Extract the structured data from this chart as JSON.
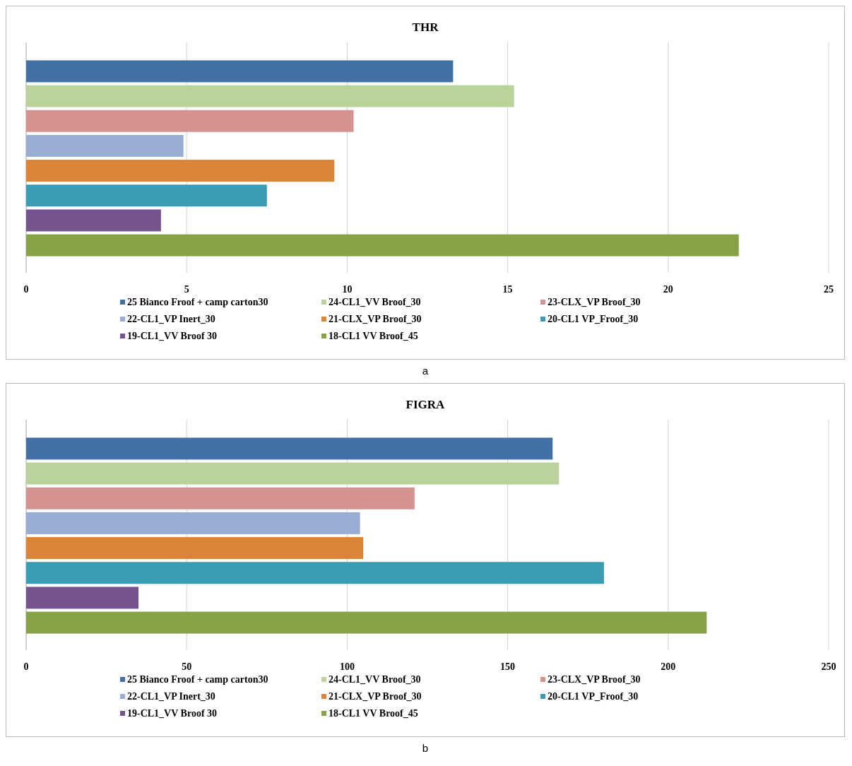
{
  "chart_data": [
    {
      "type": "bar",
      "orientation": "horizontal",
      "title": "THR",
      "categories": [
        null
      ],
      "xlim": [
        0,
        25
      ],
      "xticks": [
        0,
        5,
        10,
        15,
        20,
        25
      ],
      "grid": "x",
      "legend": "bottom",
      "tick_labels": "x",
      "annotations": [
        "a"
      ],
      "series": [
        {
          "name": "25 Bianco Froof + camp carton30",
          "color": "#4470a8",
          "values": [
            13.3
          ]
        },
        {
          "name": "24-CL1_VV Broof_30",
          "color": "#b9d39a",
          "values": [
            15.2
          ]
        },
        {
          "name": "23-CLX_VP Broof_30",
          "color": "#d59291",
          "values": [
            10.2
          ]
        },
        {
          "name": "22-CL1_VP Inert_30",
          "color": "#98acd4",
          "values": [
            4.9
          ]
        },
        {
          "name": "21-CLX_VP Broof_30",
          "color": "#da8437",
          "values": [
            9.6
          ]
        },
        {
          "name": "20-CL1 VP_Froof_30",
          "color": "#3a9bb1",
          "values": [
            7.5
          ]
        },
        {
          "name": "19-CL1_VV Broof 30",
          "color": "#74538f",
          "values": [
            4.2
          ]
        },
        {
          "name": "18-CL1 VV Broof_45",
          "color": "#86a346",
          "values": [
            22.2
          ]
        }
      ]
    },
    {
      "type": "bar",
      "orientation": "horizontal",
      "title": "FIGRA",
      "categories": [
        null
      ],
      "xlim": [
        0,
        250
      ],
      "xticks": [
        0,
        50,
        100,
        150,
        200,
        250
      ],
      "grid": "x",
      "legend": "bottom",
      "tick_labels": "x",
      "annotations": [
        "b"
      ],
      "series": [
        {
          "name": "25 Bianco Froof + camp carton30",
          "color": "#4470a8",
          "values": [
            164
          ]
        },
        {
          "name": "24-CL1_VV Broof_30",
          "color": "#b9d39a",
          "values": [
            166
          ]
        },
        {
          "name": "23-CLX_VP Broof_30",
          "color": "#d59291",
          "values": [
            121
          ]
        },
        {
          "name": "22-CL1_VP Inert_30",
          "color": "#98acd4",
          "values": [
            104
          ]
        },
        {
          "name": "21-CLX_VP Broof_30",
          "color": "#da8437",
          "values": [
            105
          ]
        },
        {
          "name": "20-CL1 VP_Froof_30",
          "color": "#3a9bb1",
          "values": [
            180
          ]
        },
        {
          "name": "19-CL1_VV Broof 30",
          "color": "#74538f",
          "values": [
            35
          ]
        },
        {
          "name": "18-CL1 VV Broof_45",
          "color": "#86a346",
          "values": [
            212
          ]
        }
      ]
    }
  ]
}
